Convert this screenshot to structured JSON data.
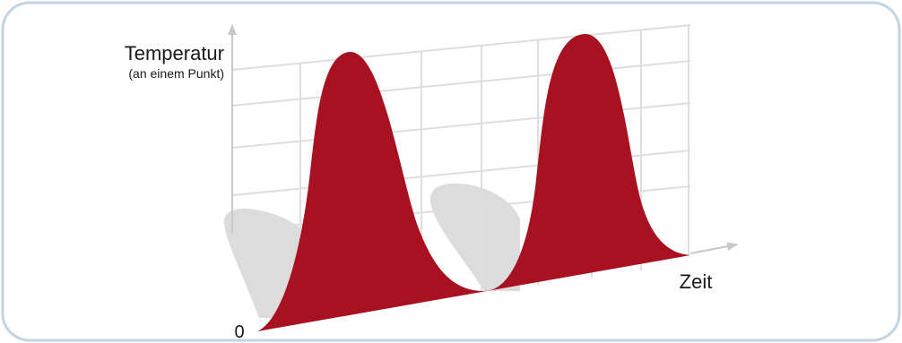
{
  "diagram": {
    "y_axis_label": "Temperatur",
    "y_axis_sublabel": "(an einem Punkt)",
    "x_axis_label": "Zeit",
    "origin_label": "0"
  },
  "colors": {
    "frame_border": "#c2d3e3",
    "grid": "#dedede",
    "axis": "#c8c8c8",
    "wave_fill": "#a8111f",
    "shadow_fill": "#dcdcdc"
  }
}
